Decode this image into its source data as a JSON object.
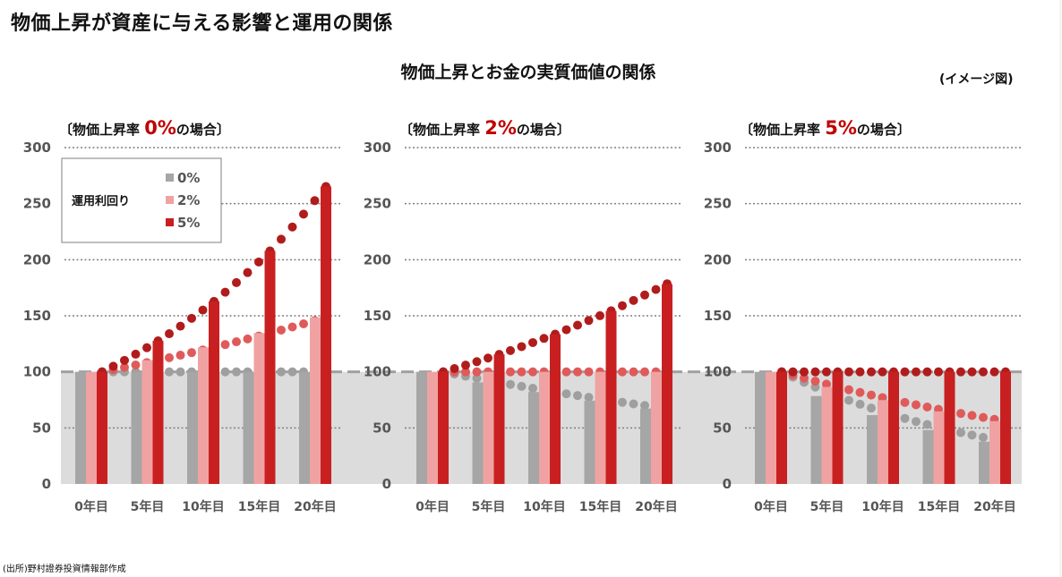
{
  "header": {
    "title": "物価上昇が資産に与える影響と運用の関係",
    "subtitle": "物価上昇とお金の実質価値の関係",
    "image_note": "(イメージ図)"
  },
  "footer": {
    "source": "(出所)野村證券投資情報部作成"
  },
  "colors": {
    "yield_0": "#a6a6a6",
    "yield_2": "#f0a2a2",
    "yield_5": "#c82020",
    "dot_0": "#9f9f9f",
    "dot_2": "#e05a5a",
    "dot_5": "#b01c1c",
    "band": "#dcdcdc",
    "accent": "#c00000"
  },
  "legend": {
    "title": "運用利回り",
    "items": [
      "0%",
      "2%",
      "5%"
    ]
  },
  "chart_data": [
    {
      "type": "bar",
      "title_prefix": "〔物価上昇率 ",
      "title_rate": "0%",
      "title_suffix": "の場合〕",
      "inflation_rate": 0.0,
      "categories": [
        "0年目",
        "5年目",
        "10年目",
        "15年目",
        "20年目"
      ],
      "ylim": [
        0,
        300
      ],
      "yticks": [
        "0",
        "50",
        "100",
        "150",
        "200",
        "250",
        "300"
      ],
      "grid": true,
      "legend_position": "top-left",
      "series": [
        {
          "name": "0%",
          "values": [
            100,
            100,
            100,
            100,
            100
          ]
        },
        {
          "name": "2%",
          "values": [
            100,
            110.4,
            121.9,
            134.6,
            148.6
          ]
        },
        {
          "name": "5%",
          "values": [
            100,
            127.6,
            162.9,
            207.9,
            265.3
          ]
        }
      ],
      "dot_series_note": "annual values, years 0-20",
      "annual_yields": [
        0,
        0.02,
        0.05
      ]
    },
    {
      "type": "bar",
      "title_prefix": "〔物価上昇率 ",
      "title_rate": "2%",
      "title_suffix": "の場合〕",
      "inflation_rate": 0.02,
      "categories": [
        "0年目",
        "5年目",
        "10年目",
        "15年目",
        "20年目"
      ],
      "ylim": [
        0,
        300
      ],
      "yticks": [
        "0",
        "50",
        "100",
        "150",
        "200",
        "250",
        "300"
      ],
      "grid": true,
      "series": [
        {
          "name": "0%",
          "values": [
            100,
            90.6,
            82.0,
            74.3,
            67.3
          ]
        },
        {
          "name": "2%",
          "values": [
            100,
            100,
            100,
            100,
            100
          ]
        },
        {
          "name": "5%",
          "values": [
            100,
            115.5,
            133.5,
            154.2,
            178.1
          ]
        }
      ],
      "dot_series_note": "annual values, years 0-20",
      "annual_yields": [
        0,
        0.02,
        0.05
      ]
    },
    {
      "type": "bar",
      "title_prefix": "〔物価上昇率 ",
      "title_rate": "5%",
      "title_suffix": "の場合〕",
      "inflation_rate": 0.05,
      "categories": [
        "0年目",
        "5年目",
        "10年目",
        "15年目",
        "20年目"
      ],
      "ylim": [
        0,
        300
      ],
      "yticks": [
        "0",
        "50",
        "100",
        "150",
        "200",
        "250",
        "300"
      ],
      "grid": true,
      "series": [
        {
          "name": "0%",
          "values": [
            100,
            78.4,
            61.4,
            48.1,
            37.7
          ]
        },
        {
          "name": "2%",
          "values": [
            100,
            86.5,
            74.8,
            64.7,
            56.0
          ]
        },
        {
          "name": "5%",
          "values": [
            100,
            100,
            100,
            100,
            100
          ]
        }
      ],
      "dot_series_note": "annual values, years 0-20",
      "annual_yields": [
        0,
        0.02,
        0.05
      ]
    }
  ]
}
